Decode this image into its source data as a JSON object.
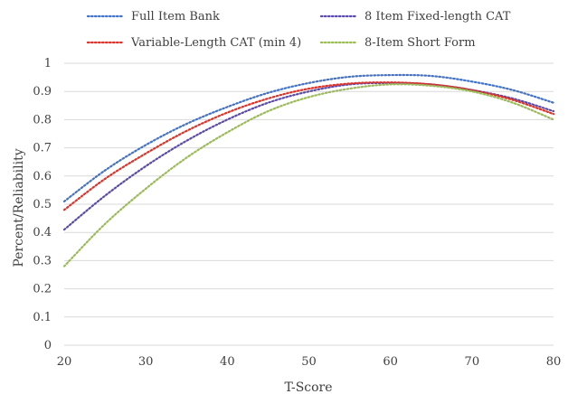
{
  "chart_data": {
    "type": "line",
    "title": "",
    "xlabel": "T-Score",
    "ylabel": "Percent/Reliability",
    "xlim": [
      20,
      80
    ],
    "ylim": [
      0,
      1
    ],
    "xticks": [
      20,
      30,
      40,
      50,
      60,
      70,
      80
    ],
    "yticks": [
      0,
      0.1,
      0.2,
      0.3,
      0.4,
      0.5,
      0.6,
      0.7,
      0.8,
      0.9,
      1
    ],
    "grid": "horizontal",
    "legend": "top",
    "x": [
      20,
      25,
      30,
      35,
      40,
      45,
      50,
      55,
      60,
      65,
      70,
      75,
      80
    ],
    "series": [
      {
        "name": "Full Item Bank",
        "color": "#4472c4",
        "values": [
          0.51,
          0.62,
          0.71,
          0.785,
          0.845,
          0.895,
          0.93,
          0.952,
          0.958,
          0.955,
          0.935,
          0.905,
          0.86
        ]
      },
      {
        "name": "8 Item Fixed-length CAT",
        "color": "#5b4aa8",
        "values": [
          0.41,
          0.53,
          0.635,
          0.725,
          0.8,
          0.86,
          0.9,
          0.925,
          0.93,
          0.925,
          0.905,
          0.875,
          0.83
        ]
      },
      {
        "name": "Variable-Length CAT (min 4)",
        "color": "#d9342b",
        "values": [
          0.48,
          0.59,
          0.68,
          0.76,
          0.825,
          0.875,
          0.91,
          0.928,
          0.932,
          0.925,
          0.905,
          0.87,
          0.82
        ]
      },
      {
        "name": "8-Item Short Form",
        "color": "#9bbb59",
        "values": [
          0.28,
          0.43,
          0.555,
          0.665,
          0.755,
          0.83,
          0.88,
          0.91,
          0.925,
          0.92,
          0.9,
          0.86,
          0.8
        ]
      }
    ]
  }
}
